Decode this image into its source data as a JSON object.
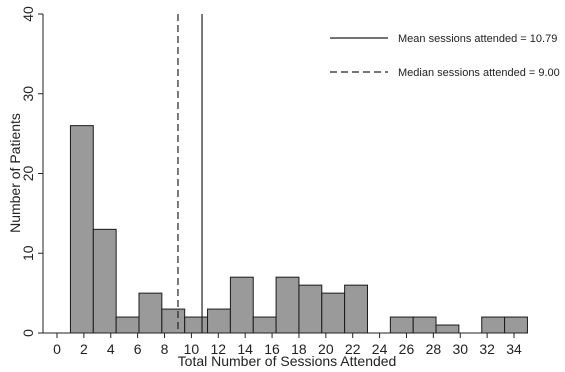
{
  "chart_data": {
    "type": "bar",
    "xlabel": "Total Number of Sessions Attended",
    "ylabel": "Number of Patients",
    "xlim": [
      0,
      34
    ],
    "ylim": [
      0,
      40
    ],
    "x_ticks": [
      0,
      2,
      4,
      6,
      8,
      10,
      12,
      14,
      16,
      18,
      20,
      22,
      24,
      26,
      28,
      30,
      32,
      34
    ],
    "y_ticks": [
      0,
      10,
      20,
      30,
      40
    ],
    "bin_width": 1.7,
    "bins": [
      {
        "start": 1.0,
        "value": 26
      },
      {
        "start": 2.7,
        "value": 13
      },
      {
        "start": 4.4,
        "value": 2
      },
      {
        "start": 6.1,
        "value": 5
      },
      {
        "start": 7.8,
        "value": 3
      },
      {
        "start": 9.5,
        "value": 2
      },
      {
        "start": 11.2,
        "value": 3
      },
      {
        "start": 12.9,
        "value": 7
      },
      {
        "start": 14.6,
        "value": 2
      },
      {
        "start": 16.3,
        "value": 7
      },
      {
        "start": 18.0,
        "value": 6
      },
      {
        "start": 19.7,
        "value": 5
      },
      {
        "start": 21.4,
        "value": 6
      },
      {
        "start": 23.1,
        "value": 0
      },
      {
        "start": 24.8,
        "value": 2
      },
      {
        "start": 26.5,
        "value": 2
      },
      {
        "start": 28.2,
        "value": 1
      },
      {
        "start": 29.9,
        "value": 0
      },
      {
        "start": 31.6,
        "value": 2
      },
      {
        "start": 33.3,
        "value": 2
      }
    ],
    "bar_color": "#9a9a9a",
    "bar_stroke": "#1a1a1a",
    "reference_lines": [
      {
        "label": "Mean sessions attended = 10.79",
        "x": 10.79,
        "style": "solid"
      },
      {
        "label": "Median sessions attended = 9.00",
        "x": 9.0,
        "style": "dashed"
      }
    ],
    "legend_position": "top-right",
    "grid": false
  }
}
